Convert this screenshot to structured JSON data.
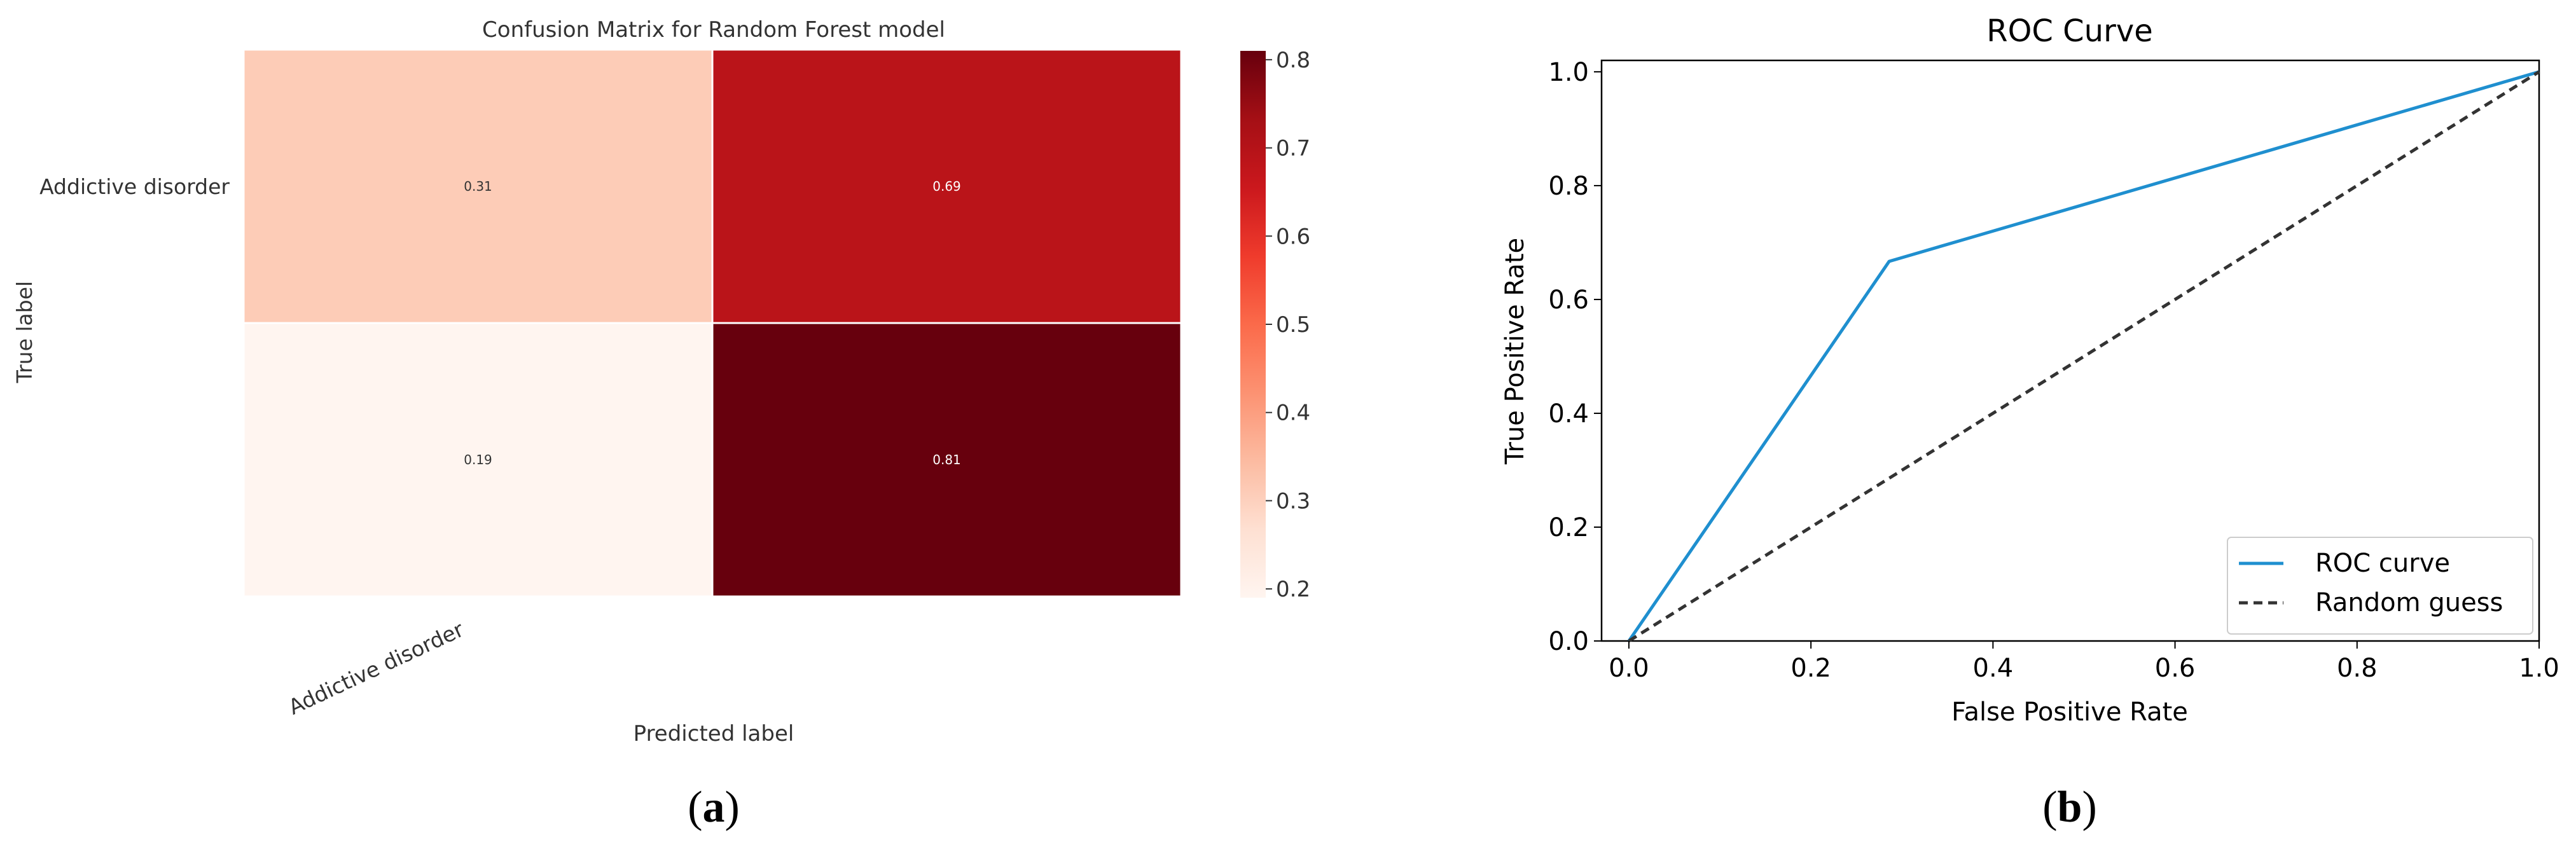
{
  "chart_data": [
    {
      "type": "heatmap",
      "title": "Confusion Matrix for Random Forest model",
      "xlabel": "Predicted label",
      "ylabel": "True label",
      "row_labels": [
        "Addictive disorder",
        ""
      ],
      "col_labels": [
        "Addictive disorder",
        ""
      ],
      "values": [
        [
          0.31,
          0.69
        ],
        [
          0.19,
          0.81
        ]
      ],
      "cell_labels": [
        [
          "0.31",
          "0.69"
        ],
        [
          "0.19",
          "0.81"
        ]
      ],
      "colormap": "Reds",
      "colorbar": {
        "range": [
          0.19,
          0.81
        ],
        "ticks": [
          0.2,
          0.3,
          0.4,
          0.5,
          0.6,
          0.7,
          0.8
        ],
        "tick_labels": [
          "0.2",
          "0.3",
          "0.4",
          "0.5",
          "0.6",
          "0.7",
          "0.8"
        ]
      }
    },
    {
      "type": "line",
      "title": "ROC Curve",
      "xlabel": "False Positive Rate",
      "ylabel": "True Positive Rate",
      "xlim": [
        -0.03,
        1.0
      ],
      "ylim": [
        0.0,
        1.02
      ],
      "x_ticks": [
        0.0,
        0.2,
        0.4,
        0.6,
        0.8,
        1.0
      ],
      "x_tick_labels": [
        "0.0",
        "0.2",
        "0.4",
        "0.6",
        "0.8",
        "1.0"
      ],
      "y_ticks": [
        0.0,
        0.2,
        0.4,
        0.6,
        0.8,
        1.0
      ],
      "y_tick_labels": [
        "0.0",
        "0.2",
        "0.4",
        "0.6",
        "0.8",
        "1.0"
      ],
      "grid": false,
      "legend_position": "lower-right",
      "series": [
        {
          "name": "ROC curve",
          "color": "#1f8fcf",
          "dash": "solid",
          "x": [
            0.0,
            0.286,
            1.0
          ],
          "y": [
            0.0,
            0.667,
            1.0
          ]
        },
        {
          "name": "Random guess",
          "color": "#333333",
          "dash": "dashed",
          "x": [
            0.0,
            1.0
          ],
          "y": [
            0.0,
            1.0
          ]
        }
      ]
    }
  ],
  "panel_labels": {
    "a": "a",
    "b": "b"
  },
  "paren_open": "(",
  "paren_close": ")"
}
